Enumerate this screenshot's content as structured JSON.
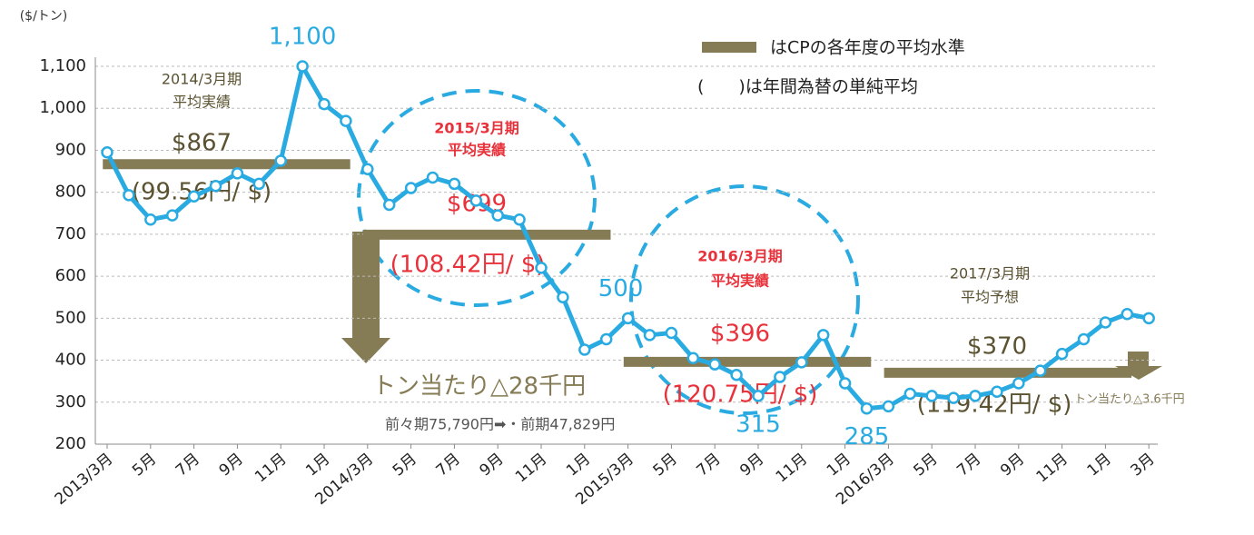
{
  "chart_data": {
    "type": "line",
    "y_unit": "($/トン)",
    "categories": [
      "2013/3月",
      null,
      "5月",
      null,
      "7月",
      null,
      "9月",
      null,
      "11月",
      null,
      "1月",
      null,
      "2014/3月",
      null,
      "5月",
      null,
      "7月",
      null,
      "9月",
      null,
      "11月",
      null,
      "1月",
      null,
      "2015/3月",
      null,
      "5月",
      null,
      "7月",
      null,
      "9月",
      null,
      "11月",
      null,
      "1月",
      null,
      "2016/3月",
      null,
      "5月",
      null,
      "7月",
      null,
      "9月",
      null,
      "11月",
      null,
      "1月",
      null,
      "3月"
    ],
    "series": [
      {
        "color": "#29abe2",
        "values": [
          895,
          793,
          735,
          745,
          790,
          815,
          845,
          820,
          875,
          1100,
          1010,
          970,
          855,
          770,
          810,
          835,
          820,
          780,
          745,
          735,
          620,
          550,
          425,
          450,
          500,
          460,
          465,
          405,
          390,
          365,
          315,
          360,
          395,
          460,
          345,
          285,
          290,
          320,
          315,
          310,
          315,
          325,
          345,
          375,
          415,
          450,
          490,
          510,
          500
        ],
        "value_labels": [
          null,
          null,
          null,
          null,
          null,
          null,
          null,
          null,
          null,
          "1,100",
          null,
          null,
          null,
          null,
          null,
          null,
          null,
          null,
          null,
          null,
          null,
          null,
          null,
          null,
          "500",
          null,
          null,
          null,
          null,
          null,
          "315",
          null,
          null,
          null,
          null,
          "285",
          null,
          null,
          null,
          null,
          null,
          null,
          null,
          null,
          null,
          null,
          null,
          null,
          null
        ]
      }
    ],
    "ylim": [
      200,
      1100
    ],
    "yticks": [
      200,
      300,
      400,
      500,
      600,
      700,
      800,
      900,
      {
        "value": 1000,
        "label": "1,000"
      },
      {
        "value": 1100,
        "label": "1,100"
      }
    ],
    "averages": {
      "color": "#857b54",
      "items": [
        {
          "title": [
            "2014/3月期",
            "平均実績"
          ],
          "label": "$867",
          "value": 867,
          "rate": "(99.56円/ $)"
        },
        {
          "title": [
            "2015/3月期",
            "平均実績"
          ],
          "label": "$699",
          "value": 699,
          "rate": "(108.42円/ $)"
        },
        {
          "title": [
            "2016/3月期",
            "平均実績"
          ],
          "label": "$396",
          "value": 396,
          "rate": "(120.75円/ $)"
        },
        {
          "title": [
            "2017/3月期",
            "平均予想"
          ],
          "label": "$370",
          "value": 370,
          "rate": "(119.42円/ $)"
        }
      ]
    },
    "legend": [
      "はCPの各年度の平均水準",
      "(　　)は年間為替の単純平均"
    ],
    "annotations": {
      "drop_main": "トン当たり△28千円",
      "drop_detail": "前々期75,790円➡・前期47,829円",
      "drop_next": "トン当たり△3.6千円"
    }
  }
}
